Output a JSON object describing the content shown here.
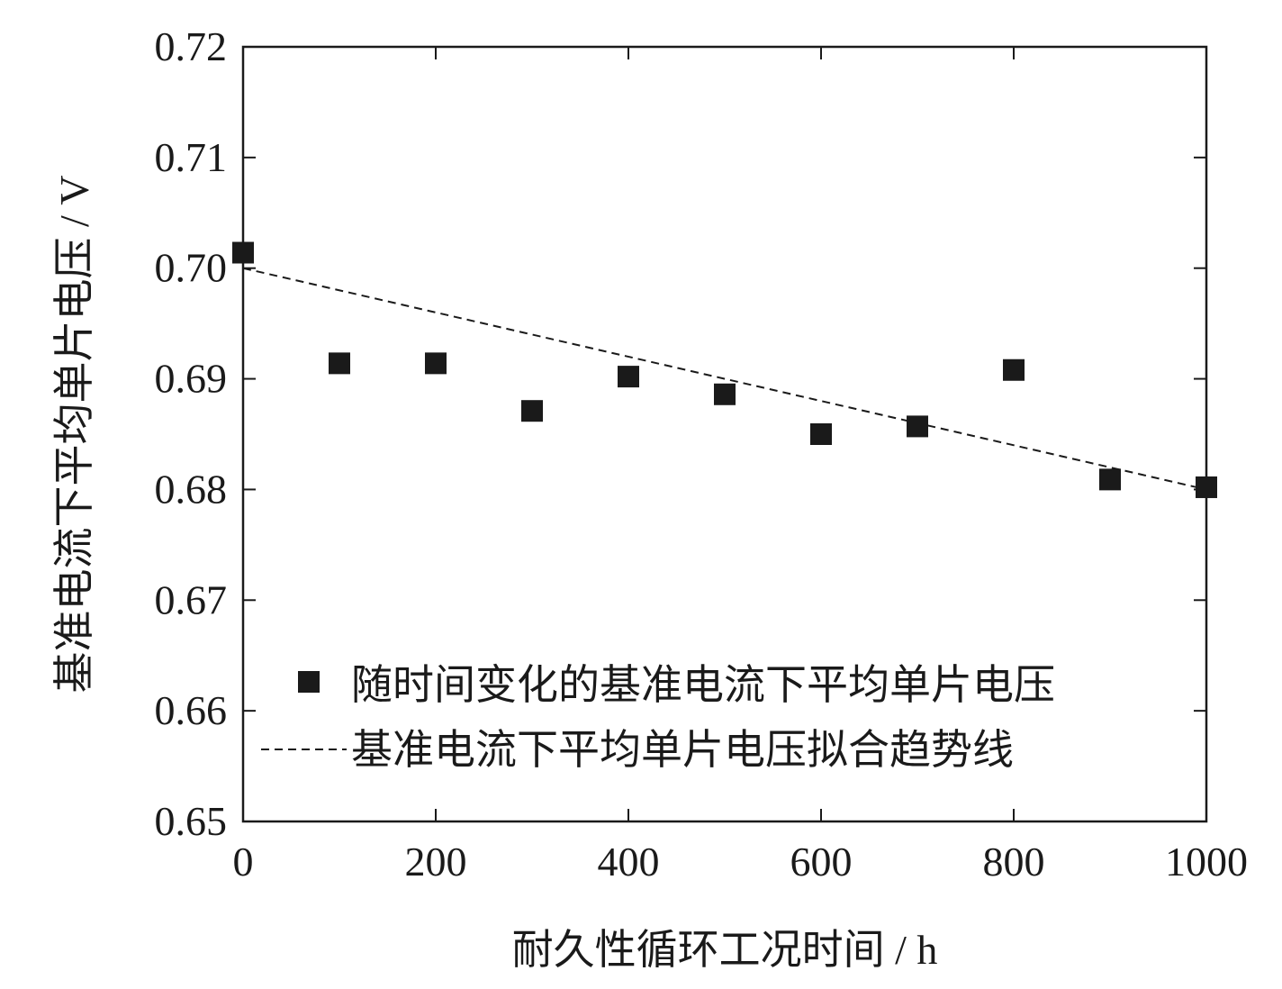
{
  "chart_data": {
    "type": "scatter",
    "title": "",
    "xlabel": "耐久性循环工况时间 / h",
    "ylabel": "基准电流下平均单片电压 / V",
    "xlim": [
      0,
      1000
    ],
    "ylim": [
      0.65,
      0.72
    ],
    "xticks": [
      0,
      200,
      400,
      600,
      800,
      1000
    ],
    "xtick_labels": [
      "0",
      "200",
      "400",
      "600",
      "800",
      "1000"
    ],
    "yticks": [
      0.65,
      0.66,
      0.67,
      0.68,
      0.69,
      0.7,
      0.71,
      0.72
    ],
    "ytick_labels": [
      "0.65",
      "0.66",
      "0.67",
      "0.68",
      "0.69",
      "0.70",
      "0.71",
      "0.72"
    ],
    "grid": false,
    "legend_position": "bottom-left",
    "series": [
      {
        "name": "随时间变化的基准电流下平均单片电压",
        "kind": "scatter",
        "marker": "square",
        "color": "#1a1a1a",
        "x": [
          0,
          100,
          200,
          300,
          400,
          500,
          600,
          700,
          800,
          900,
          1000
        ],
        "y": [
          0.7014,
          0.6914,
          0.6914,
          0.6871,
          0.6902,
          0.6886,
          0.685,
          0.6857,
          0.6908,
          0.6809,
          0.6802
        ]
      },
      {
        "name": "基准电流下平均单片电压拟合趋势线",
        "kind": "line",
        "style": "dashed",
        "color": "#1a1a1a",
        "x": [
          0,
          1000
        ],
        "y": [
          0.7,
          0.68
        ]
      }
    ]
  }
}
